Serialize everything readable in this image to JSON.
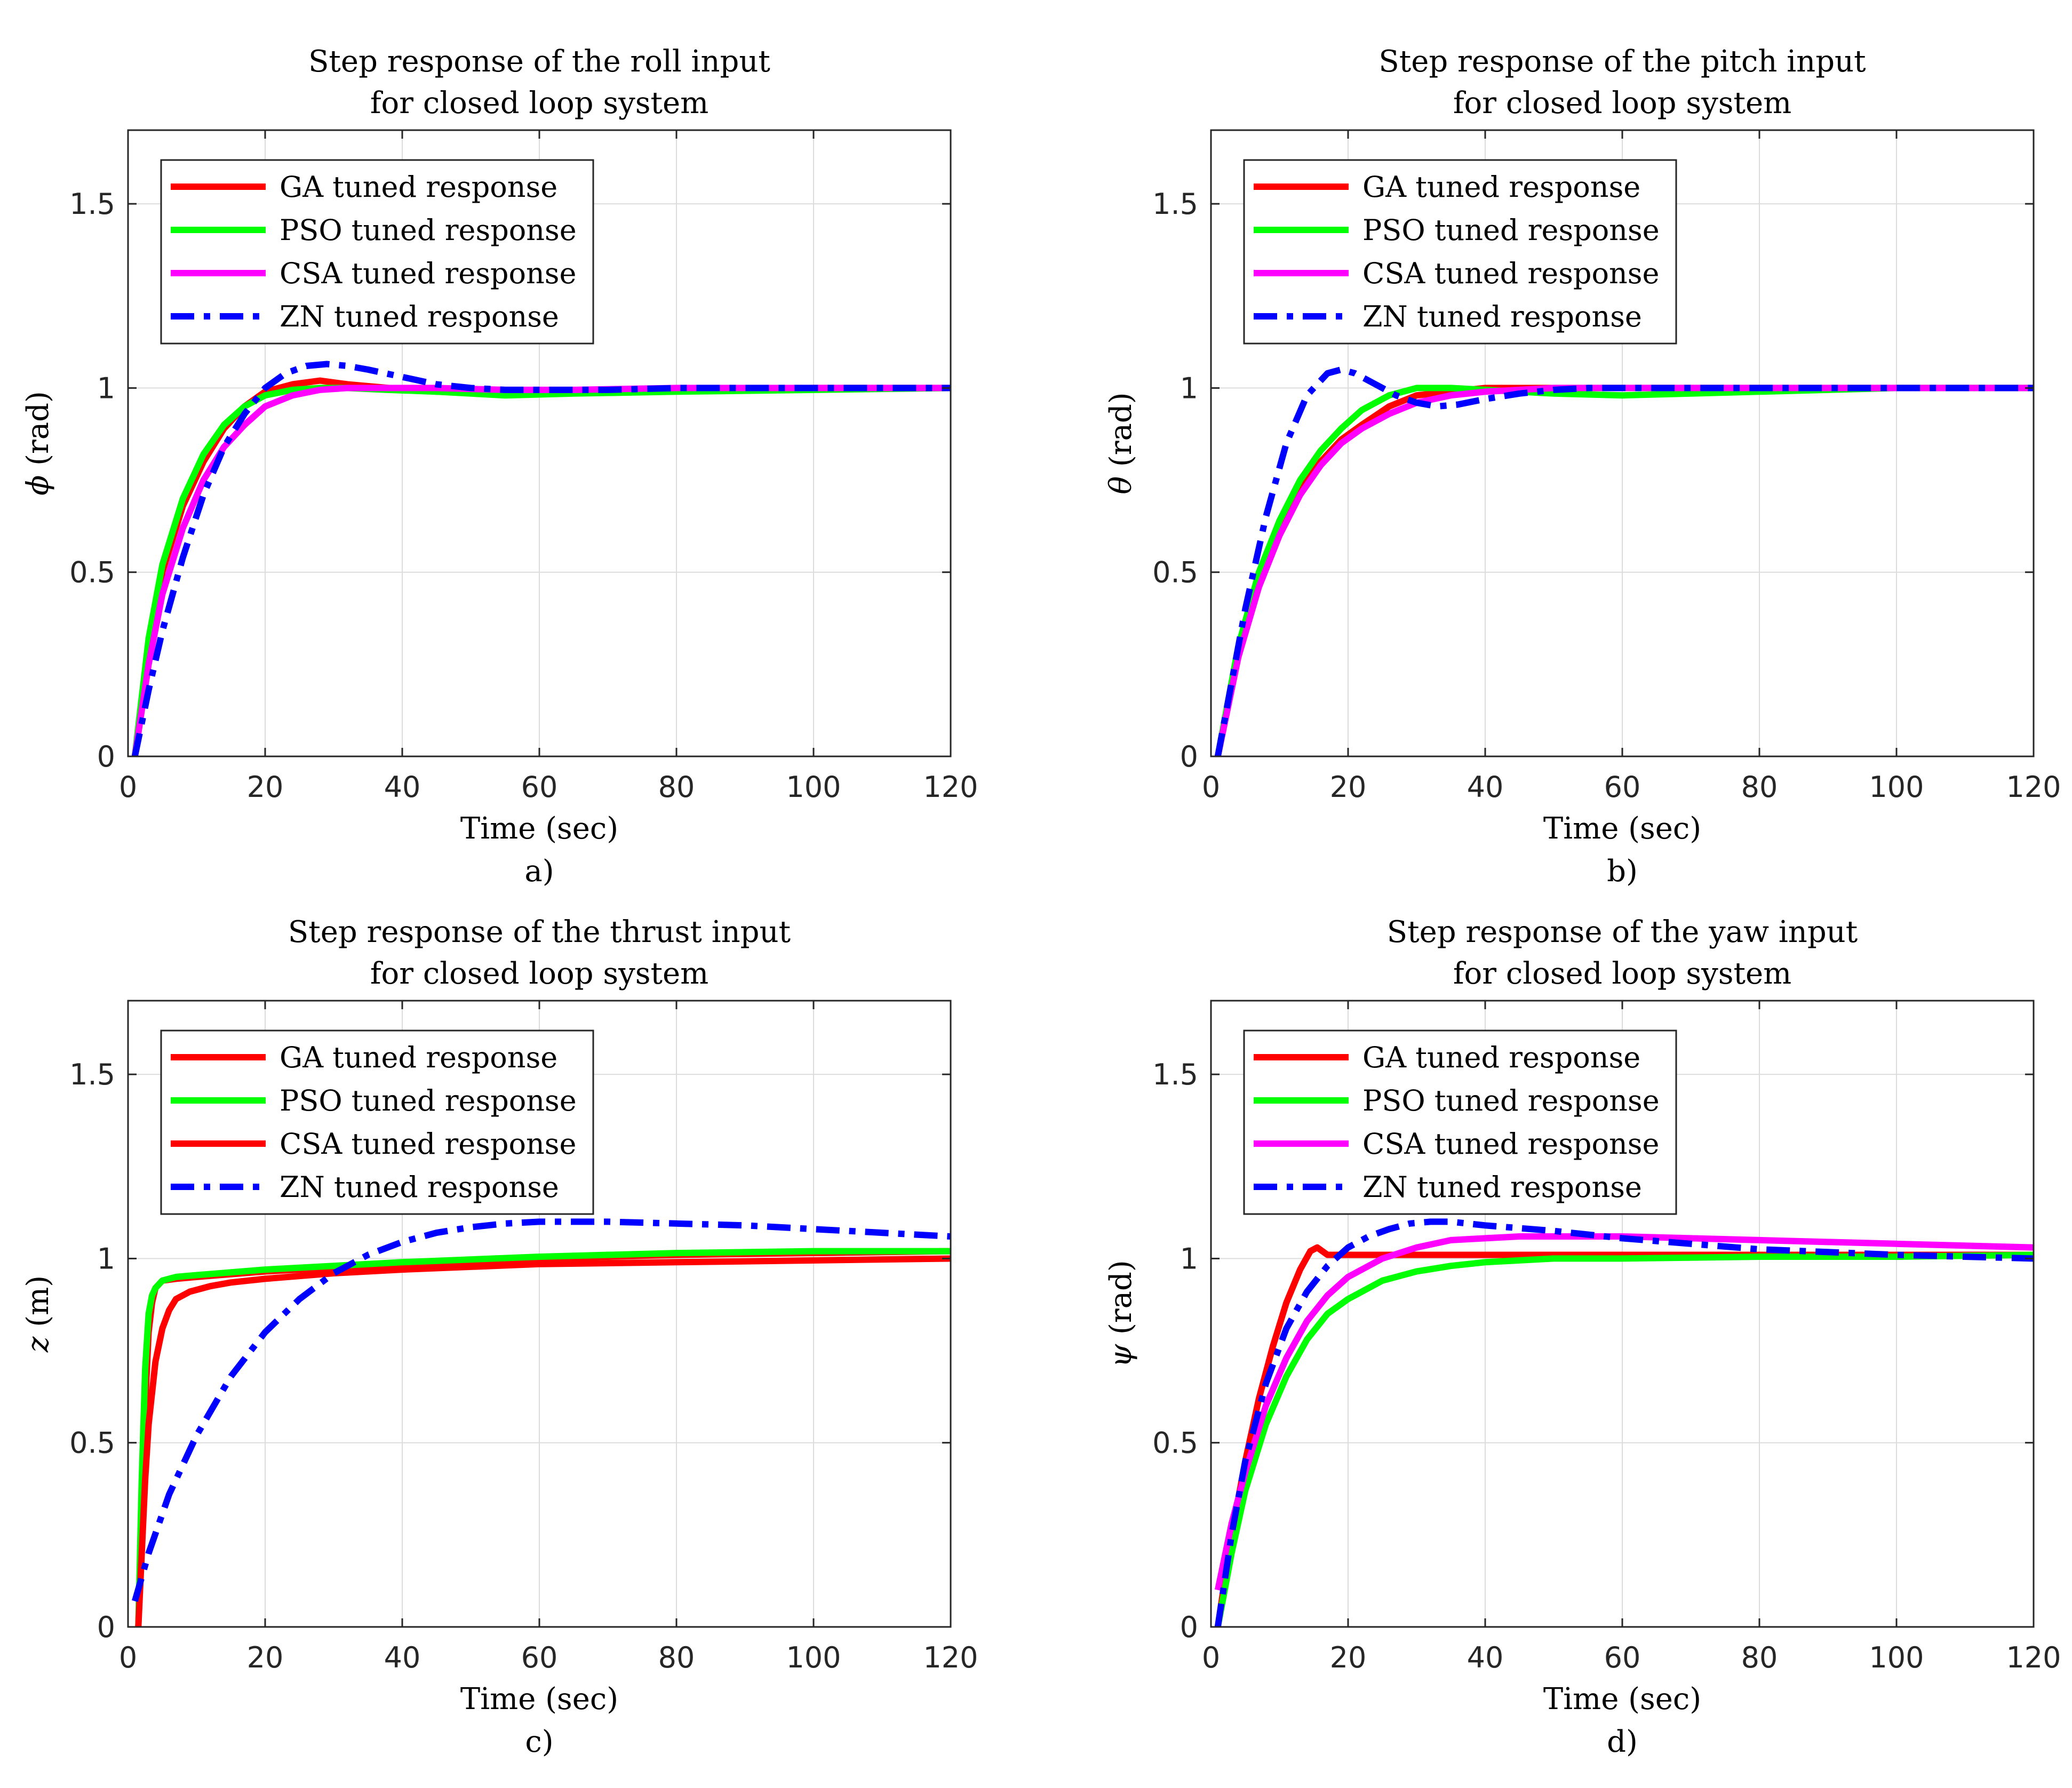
{
  "chart_data": [
    {
      "type": "line",
      "panel": "a",
      "title": [
        "Step response of the roll input",
        "for closed loop system"
      ],
      "xlabel": "Time (sec)",
      "ylabel": "ϕ (rad)",
      "ylabel_symbol": "ϕ",
      "ylabel_unit": "(rad)",
      "caption": "a)",
      "xlim": [
        0,
        120
      ],
      "ylim": [
        0,
        1.7
      ],
      "xticks": [
        0,
        20,
        40,
        60,
        80,
        100,
        120
      ],
      "yticks": [
        0,
        0.5,
        1,
        1.5
      ],
      "ytick_labels": [
        "0",
        "0.5",
        "1",
        "1.5"
      ],
      "grid": true,
      "legend_position": "top-left",
      "series": [
        {
          "name": "GA tuned response",
          "color": "#ff0000",
          "style": "solid",
          "x": [
            1,
            3,
            5,
            8,
            11,
            14,
            17,
            20,
            24,
            28,
            32,
            38,
            45,
            55,
            65,
            80,
            100,
            120
          ],
          "y": [
            0,
            0.3,
            0.5,
            0.68,
            0.8,
            0.89,
            0.95,
            0.99,
            1.01,
            1.02,
            1.01,
            1.0,
            0.99,
            0.985,
            0.99,
            0.995,
            1.0,
            1.0
          ]
        },
        {
          "name": "PSO tuned response",
          "color": "#00ff00",
          "style": "solid",
          "x": [
            1,
            3,
            5,
            8,
            11,
            14,
            17,
            20,
            24,
            28,
            32,
            38,
            45,
            55,
            65,
            80,
            100,
            120
          ],
          "y": [
            0,
            0.32,
            0.52,
            0.7,
            0.82,
            0.9,
            0.95,
            0.98,
            0.995,
            1.0,
            1.0,
            0.995,
            0.99,
            0.98,
            0.985,
            0.99,
            0.995,
            1.0
          ]
        },
        {
          "name": "CSA tuned response",
          "color": "#ff00ff",
          "style": "solid",
          "x": [
            1,
            3,
            5,
            8,
            11,
            14,
            17,
            20,
            24,
            28,
            32,
            38,
            45,
            55,
            65,
            80,
            100,
            120
          ],
          "y": [
            0,
            0.25,
            0.44,
            0.62,
            0.75,
            0.84,
            0.9,
            0.95,
            0.98,
            0.995,
            1.0,
            1.0,
            1.0,
            0.995,
            0.995,
            1.0,
            1.0,
            1.0
          ]
        },
        {
          "name": "ZN tuned response",
          "color": "#0000ff",
          "style": "dashdot",
          "x": [
            1,
            3,
            5,
            8,
            11,
            14,
            17,
            20,
            23,
            26,
            29,
            32,
            35,
            40,
            45,
            50,
            55,
            60,
            70,
            80,
            100,
            120
          ],
          "y": [
            0,
            0.18,
            0.34,
            0.54,
            0.71,
            0.84,
            0.93,
            1.0,
            1.04,
            1.06,
            1.065,
            1.06,
            1.05,
            1.03,
            1.01,
            1.0,
            0.995,
            0.995,
            0.995,
            1.0,
            1.0,
            1.0
          ]
        }
      ]
    },
    {
      "type": "line",
      "panel": "b",
      "title": [
        "Step response of the pitch input",
        "for closed loop system"
      ],
      "xlabel": "Time (sec)",
      "ylabel": "θ (rad)",
      "ylabel_symbol": "θ",
      "ylabel_unit": "(rad)",
      "caption": "b)",
      "xlim": [
        0,
        120
      ],
      "ylim": [
        0,
        1.7
      ],
      "xticks": [
        0,
        20,
        40,
        60,
        80,
        100,
        120
      ],
      "yticks": [
        0,
        0.5,
        1,
        1.5
      ],
      "ytick_labels": [
        "0",
        "0.5",
        "1",
        "1.5"
      ],
      "grid": true,
      "legend_position": "top-left",
      "series": [
        {
          "name": "GA tuned response",
          "color": "#ff0000",
          "style": "solid",
          "x": [
            1,
            4,
            7,
            10,
            13,
            16,
            19,
            22,
            26,
            30,
            35,
            40,
            50,
            60,
            80,
            100,
            120
          ],
          "y": [
            0,
            0.28,
            0.47,
            0.61,
            0.72,
            0.8,
            0.86,
            0.9,
            0.95,
            0.98,
            0.99,
            1.0,
            1.0,
            1.0,
            1.0,
            1.0,
            1.0
          ]
        },
        {
          "name": "PSO tuned response",
          "color": "#00ff00",
          "style": "solid",
          "x": [
            1,
            4,
            7,
            10,
            13,
            16,
            19,
            22,
            26,
            30,
            35,
            40,
            50,
            60,
            70,
            80,
            100,
            120
          ],
          "y": [
            0,
            0.3,
            0.5,
            0.64,
            0.75,
            0.83,
            0.89,
            0.94,
            0.98,
            1.0,
            1.0,
            0.995,
            0.985,
            0.98,
            0.985,
            0.99,
            1.0,
            1.0
          ]
        },
        {
          "name": "CSA tuned response",
          "color": "#ff00ff",
          "style": "solid",
          "x": [
            1,
            4,
            7,
            10,
            13,
            16,
            19,
            22,
            26,
            30,
            35,
            40,
            45,
            50,
            60,
            80,
            100,
            120
          ],
          "y": [
            0,
            0.27,
            0.46,
            0.6,
            0.71,
            0.79,
            0.85,
            0.89,
            0.93,
            0.96,
            0.98,
            0.99,
            0.995,
            1.0,
            1.0,
            1.0,
            1.0,
            1.0
          ]
        },
        {
          "name": "ZN tuned response",
          "color": "#0000ff",
          "style": "dashdot",
          "x": [
            1,
            3,
            5,
            8,
            11,
            14,
            17,
            19,
            21,
            24,
            27,
            30,
            33,
            36,
            40,
            45,
            50,
            55,
            60,
            70,
            80,
            100,
            120
          ],
          "y": [
            0,
            0.2,
            0.4,
            0.65,
            0.85,
            0.98,
            1.04,
            1.05,
            1.04,
            1.01,
            0.98,
            0.96,
            0.95,
            0.955,
            0.97,
            0.985,
            0.995,
            1.0,
            1.0,
            1.0,
            1.0,
            1.0,
            1.0
          ]
        }
      ]
    },
    {
      "type": "line",
      "panel": "c",
      "title": [
        "Step response of the thrust input",
        "for closed loop system"
      ],
      "xlabel": "Time (sec)",
      "ylabel": "z (m)",
      "ylabel_symbol": "z",
      "ylabel_unit": "(m)",
      "caption": "c)",
      "xlim": [
        0,
        120
      ],
      "ylim": [
        0,
        1.7
      ],
      "xticks": [
        0,
        20,
        40,
        60,
        80,
        100,
        120
      ],
      "yticks": [
        0,
        0.5,
        1,
        1.5
      ],
      "ytick_labels": [
        "0",
        "0.5",
        "1",
        "1.5"
      ],
      "grid": true,
      "legend_position": "top-left",
      "series": [
        {
          "name": "GA tuned response",
          "color": "#ff0000",
          "style": "solid",
          "x": [
            1.5,
            2,
            2.5,
            3,
            3.5,
            4,
            5,
            7,
            10,
            20,
            40,
            60,
            80,
            100,
            120
          ],
          "y": [
            0,
            0.3,
            0.6,
            0.8,
            0.88,
            0.92,
            0.94,
            0.945,
            0.95,
            0.965,
            0.985,
            1.0,
            1.01,
            1.015,
            1.02
          ]
        },
        {
          "name": "PSO tuned response",
          "color": "#00ff00",
          "style": "solid",
          "x": [
            1.5,
            2,
            2.5,
            3,
            3.5,
            4,
            5,
            7,
            10,
            20,
            40,
            60,
            80,
            100,
            120
          ],
          "y": [
            0,
            0.4,
            0.7,
            0.85,
            0.9,
            0.92,
            0.94,
            0.95,
            0.955,
            0.97,
            0.99,
            1.005,
            1.015,
            1.02,
            1.02
          ]
        },
        {
          "name": "CSA tuned response",
          "color": "#ff0000",
          "style": "solid",
          "x": [
            1.5,
            2,
            2.5,
            3,
            4,
            5,
            6,
            7,
            9,
            12,
            15,
            20,
            30,
            40,
            60,
            80,
            100,
            120
          ],
          "y": [
            0,
            0.2,
            0.4,
            0.55,
            0.72,
            0.81,
            0.86,
            0.89,
            0.91,
            0.925,
            0.935,
            0.945,
            0.96,
            0.97,
            0.985,
            0.99,
            0.995,
            1.0
          ]
        },
        {
          "name": "ZN tuned response",
          "color": "#0000ff",
          "style": "dashdot",
          "x": [
            1,
            3,
            6,
            10,
            15,
            20,
            25,
            30,
            35,
            40,
            45,
            50,
            55,
            60,
            65,
            70,
            80,
            90,
            100,
            110,
            120
          ],
          "y": [
            0.07,
            0.2,
            0.36,
            0.52,
            0.68,
            0.8,
            0.89,
            0.96,
            1.01,
            1.045,
            1.07,
            1.085,
            1.095,
            1.1,
            1.1,
            1.1,
            1.095,
            1.09,
            1.08,
            1.07,
            1.06
          ]
        }
      ]
    },
    {
      "type": "line",
      "panel": "d",
      "title": [
        "Step response of the yaw input",
        "for closed loop system"
      ],
      "xlabel": "Time (sec)",
      "ylabel": "ψ (rad)",
      "ylabel_symbol": "ψ",
      "ylabel_unit": "(rad)",
      "caption": "d)",
      "xlim": [
        0,
        120
      ],
      "ylim": [
        0,
        1.7
      ],
      "xticks": [
        0,
        20,
        40,
        60,
        80,
        100,
        120
      ],
      "yticks": [
        0,
        0.5,
        1,
        1.5
      ],
      "ytick_labels": [
        "0",
        "0.5",
        "1",
        "1.5"
      ],
      "grid": true,
      "legend_position": "top-left",
      "series": [
        {
          "name": "GA tuned response",
          "color": "#ff0000",
          "style": "solid",
          "x": [
            1,
            3,
            5,
            7,
            9,
            11,
            13,
            14.5,
            15.5,
            17,
            20,
            30,
            50,
            80,
            100,
            120
          ],
          "y": [
            0,
            0.25,
            0.45,
            0.62,
            0.76,
            0.88,
            0.97,
            1.02,
            1.03,
            1.01,
            1.01,
            1.01,
            1.01,
            1.01,
            1.01,
            1.01
          ]
        },
        {
          "name": "PSO tuned response",
          "color": "#00ff00",
          "style": "solid",
          "x": [
            1,
            3,
            5,
            8,
            11,
            14,
            17,
            20,
            25,
            30,
            35,
            40,
            50,
            60,
            80,
            100,
            120
          ],
          "y": [
            0,
            0.2,
            0.37,
            0.55,
            0.68,
            0.78,
            0.85,
            0.89,
            0.94,
            0.965,
            0.98,
            0.99,
            1.0,
            1.0,
            1.005,
            1.005,
            1.01
          ]
        },
        {
          "name": "CSA tuned response",
          "color": "#ff00ff",
          "style": "solid",
          "x": [
            1,
            3,
            5,
            8,
            11,
            14,
            17,
            20,
            25,
            30,
            35,
            40,
            45,
            50,
            60,
            70,
            80,
            100,
            120
          ],
          "y": [
            0.1,
            0.28,
            0.42,
            0.6,
            0.73,
            0.83,
            0.9,
            0.95,
            1.0,
            1.03,
            1.05,
            1.055,
            1.06,
            1.06,
            1.06,
            1.055,
            1.05,
            1.04,
            1.03
          ]
        },
        {
          "name": "ZN tuned response",
          "color": "#0000ff",
          "style": "dashdot",
          "x": [
            1,
            3,
            5,
            8,
            11,
            14,
            17,
            20,
            23,
            26,
            29,
            32,
            35,
            40,
            50,
            60,
            70,
            80,
            100,
            120
          ],
          "y": [
            0,
            0.25,
            0.45,
            0.66,
            0.81,
            0.91,
            0.98,
            1.03,
            1.06,
            1.08,
            1.095,
            1.1,
            1.1,
            1.09,
            1.075,
            1.055,
            1.04,
            1.025,
            1.01,
            1.0
          ]
        }
      ]
    }
  ]
}
